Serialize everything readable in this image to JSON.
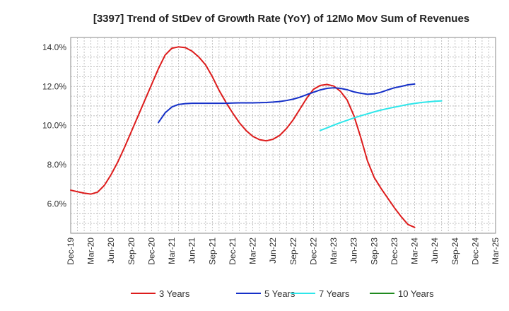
{
  "chart_data": {
    "type": "line",
    "title": "[3397]  Trend of StDev of Growth Rate (YoY) of 12Mo Mov Sum of Revenues",
    "xlabel": "",
    "ylabel": "",
    "ylim": [
      4.5,
      14.5
    ],
    "y_ticks": [
      6.0,
      8.0,
      10.0,
      12.0,
      14.0
    ],
    "y_tick_labels": [
      "6.0%",
      "8.0%",
      "10.0%",
      "12.0%",
      "14.0%"
    ],
    "x_ticks": [
      "Dec-19",
      "Mar-20",
      "Jun-20",
      "Sep-20",
      "Dec-20",
      "Mar-21",
      "Jun-21",
      "Sep-21",
      "Dec-21",
      "Mar-22",
      "Jun-22",
      "Sep-22",
      "Dec-22",
      "Mar-23",
      "Jun-23",
      "Sep-23",
      "Dec-23",
      "Mar-24",
      "Jun-24",
      "Sep-24",
      "Dec-24",
      "Mar-25"
    ],
    "grid": true,
    "legend_position": "bottom",
    "series": [
      {
        "name": "3 Years",
        "color": "#dd1c1c",
        "start_index": 0,
        "values": [
          6.7,
          6.62,
          6.55,
          6.5,
          6.6,
          6.95,
          7.5,
          8.15,
          8.9,
          9.7,
          10.5,
          11.3,
          12.1,
          12.9,
          13.6,
          13.95,
          14.02,
          13.98,
          13.8,
          13.5,
          13.1,
          12.5,
          11.8,
          11.2,
          10.65,
          10.15,
          9.75,
          9.45,
          9.28,
          9.22,
          9.3,
          9.5,
          9.85,
          10.3,
          10.85,
          11.4,
          11.85,
          12.05,
          12.1,
          12.02,
          11.75,
          11.3,
          10.5,
          9.4,
          8.2,
          7.35,
          6.8,
          6.3,
          5.8,
          5.35,
          4.95,
          4.8
        ]
      },
      {
        "name": "5 Years",
        "color": "#1530c8",
        "start_index": 13,
        "values": [
          10.15,
          10.65,
          10.95,
          11.08,
          11.12,
          11.14,
          11.14,
          11.14,
          11.14,
          11.14,
          11.14,
          11.15,
          11.16,
          11.16,
          11.16,
          11.17,
          11.18,
          11.2,
          11.23,
          11.28,
          11.35,
          11.45,
          11.58,
          11.7,
          11.82,
          11.9,
          11.93,
          11.9,
          11.83,
          11.72,
          11.65,
          11.6,
          11.62,
          11.7,
          11.82,
          11.93,
          12.0,
          12.08,
          12.12
        ]
      },
      {
        "name": "7 Years",
        "color": "#2ee6ea",
        "start_index": 37,
        "values": [
          9.75,
          9.88,
          10.02,
          10.15,
          10.27,
          10.39,
          10.5,
          10.6,
          10.7,
          10.79,
          10.87,
          10.94,
          11.01,
          11.08,
          11.13,
          11.18,
          11.21,
          11.24,
          11.26
        ]
      },
      {
        "name": "10 Years",
        "color": "#1f8a1f",
        "start_index": 0,
        "values": []
      }
    ]
  }
}
